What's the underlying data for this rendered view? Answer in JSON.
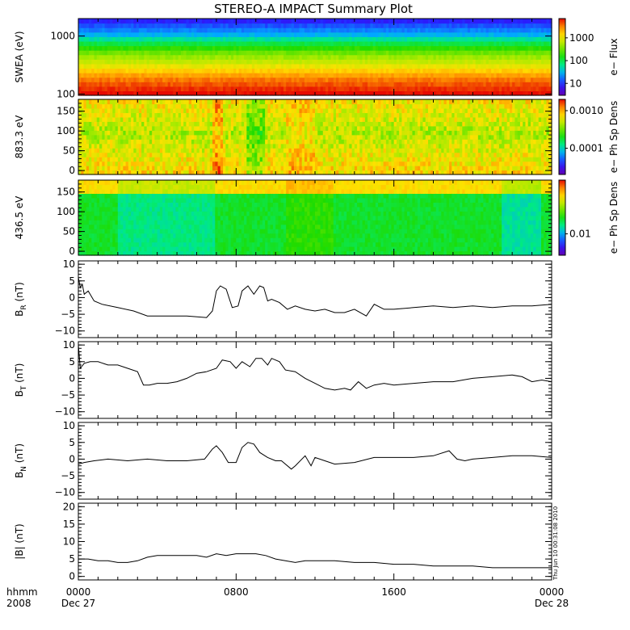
{
  "title": "STEREO-A IMPACT Summary Plot",
  "time_axis": {
    "range_hours": [
      0,
      24
    ],
    "ticks": [
      {
        "hour": 0,
        "label": "0000"
      },
      {
        "hour": 8,
        "label": "0800"
      },
      {
        "hour": 16,
        "label": "1600"
      },
      {
        "hour": 24,
        "label": "0000"
      }
    ],
    "date_labels": [
      {
        "hour": 0,
        "label": "Dec 27"
      },
      {
        "hour": 24,
        "label": "Dec 28"
      }
    ],
    "left_labels": [
      "hhmm",
      "2008"
    ]
  },
  "timestamp": "Thu Jun 10 00:31:08 2010",
  "chart_data": [
    {
      "type": "heatmap",
      "name": "swea",
      "ylabel": "SWEA (eV)",
      "ylim": [
        95,
        2000
      ],
      "yscale": "log",
      "yticks": [
        {
          "value": 100,
          "label": "100"
        },
        {
          "value": 1000,
          "label": "1000"
        }
      ],
      "colorbar": {
        "label": "e− Flux",
        "scale": "log",
        "range": [
          3,
          7000
        ],
        "ticks": [
          {
            "value": 10,
            "label": "10"
          },
          {
            "value": 100,
            "label": "100"
          },
          {
            "value": 1000,
            "label": "1000"
          }
        ]
      },
      "y_profile": [
        [
          95,
          0.0
        ],
        [
          180,
          0.12
        ],
        [
          300,
          0.3
        ],
        [
          500,
          0.45
        ],
        [
          700,
          0.6
        ],
        [
          1000,
          0.78
        ],
        [
          1500,
          0.9
        ],
        [
          2000,
          1.0
        ]
      ]
    },
    {
      "type": "heatmap",
      "name": "pad883",
      "ylabel": "883.3 eV",
      "ylim": [
        -10,
        180
      ],
      "yticks": [
        {
          "value": 0,
          "label": "0"
        },
        {
          "value": 50,
          "label": "50"
        },
        {
          "value": 100,
          "label": "100"
        },
        {
          "value": 150,
          "label": "150"
        }
      ],
      "colorbar": {
        "label": "e− Ph Sp Dens",
        "scale": "log",
        "range": [
          2e-05,
          0.002
        ],
        "ticks": [
          {
            "value": 0.0001,
            "label": "0.0001"
          },
          {
            "value": 0.001,
            "label": "0.0010"
          }
        ]
      }
    },
    {
      "type": "heatmap",
      "name": "pad436",
      "ylabel": "436.5 eV",
      "ylim": [
        -10,
        180
      ],
      "yticks": [
        {
          "value": 0,
          "label": "0"
        },
        {
          "value": 50,
          "label": "50"
        },
        {
          "value": 100,
          "label": "100"
        },
        {
          "value": 150,
          "label": "150"
        }
      ],
      "colorbar": {
        "label": "e− Ph Sp Dens",
        "scale": "log",
        "range": [
          0.004,
          0.1
        ],
        "ticks": [
          {
            "value": 0.01,
            "label": "0.01"
          }
        ]
      }
    },
    {
      "type": "line",
      "name": "br",
      "ylabel_main": "B",
      "ylabel_sub": "R",
      "ylabel_unit": " (nT)",
      "ylim": [
        -12,
        11
      ],
      "yticks": [
        {
          "value": -10,
          "label": "−10"
        },
        {
          "value": -5,
          "label": "−5"
        },
        {
          "value": 0,
          "label": "0"
        },
        {
          "value": 5,
          "label": "5"
        },
        {
          "value": 10,
          "label": "10"
        }
      ],
      "x": [
        0,
        0.1,
        0.2,
        0.3,
        0.5,
        0.8,
        1.2,
        2.0,
        2.8,
        3.5,
        4.5,
        5.5,
        6.5,
        6.8,
        7.0,
        7.2,
        7.5,
        7.8,
        8.1,
        8.3,
        8.6,
        8.9,
        9.2,
        9.4,
        9.6,
        9.8,
        10.2,
        10.6,
        11.0,
        11.5,
        12.0,
        12.5,
        13.0,
        13.5,
        14.0,
        14.6,
        15.0,
        15.5,
        16.0,
        17.0,
        18.0,
        19.0,
        20.0,
        21.0,
        22.0,
        23.0,
        24.0
      ],
      "y": [
        6,
        3,
        4,
        1,
        2,
        -1,
        -2,
        -3,
        -4,
        -5.5,
        -5.5,
        -5.5,
        -6,
        -4,
        2,
        3.5,
        2.5,
        -3,
        -2.5,
        2,
        3.5,
        1,
        3.5,
        3,
        -1,
        -0.5,
        -1.5,
        -3.5,
        -2.5,
        -3.5,
        -4,
        -3.5,
        -4.5,
        -4.5,
        -3.5,
        -5.5,
        -2,
        -3.5,
        -3.5,
        -3,
        -2.5,
        -3,
        -2.5,
        -3,
        -2.5,
        -2.5,
        -2
      ]
    },
    {
      "type": "line",
      "name": "bt",
      "ylabel_main": "B",
      "ylabel_sub": "T",
      "ylabel_unit": " (nT)",
      "ylim": [
        -12,
        11
      ],
      "yticks": [
        {
          "value": -10,
          "label": "−10"
        },
        {
          "value": -5,
          "label": "−5"
        },
        {
          "value": 0,
          "label": "0"
        },
        {
          "value": 5,
          "label": "5"
        },
        {
          "value": 10,
          "label": "10"
        }
      ],
      "x": [
        0,
        0.1,
        0.3,
        0.6,
        1.0,
        1.5,
        2.0,
        2.5,
        3.0,
        3.3,
        3.6,
        4.0,
        4.5,
        5.0,
        5.5,
        6.0,
        6.5,
        7.0,
        7.3,
        7.7,
        8.0,
        8.3,
        8.7,
        9.0,
        9.3,
        9.6,
        9.8,
        10.2,
        10.5,
        11.0,
        11.5,
        12.0,
        12.5,
        13.0,
        13.5,
        13.8,
        14.2,
        14.6,
        15.0,
        15.5,
        16.0,
        17.0,
        18.0,
        19.0,
        20.0,
        21.0,
        22.0,
        22.5,
        23.0,
        23.5,
        24.0
      ],
      "y": [
        10,
        3,
        4.5,
        5,
        5,
        4,
        4,
        3,
        2,
        -2,
        -2,
        -1.5,
        -1.5,
        -1,
        0,
        1.5,
        2,
        3,
        5.5,
        5,
        3,
        5,
        3.5,
        6,
        6,
        4,
        6,
        5,
        2.5,
        2,
        0,
        -1.5,
        -3,
        -3.5,
        -3,
        -3.5,
        -1,
        -3,
        -2,
        -1.5,
        -2,
        -1.5,
        -1,
        -1,
        0,
        0.5,
        1,
        0.5,
        -1,
        -0.5,
        -1
      ]
    },
    {
      "type": "line",
      "name": "bn",
      "ylabel_main": "B",
      "ylabel_sub": "N",
      "ylabel_unit": " (nT)",
      "ylim": [
        -12,
        11
      ],
      "yticks": [
        {
          "value": -10,
          "label": "−10"
        },
        {
          "value": -5,
          "label": "−5"
        },
        {
          "value": 0,
          "label": "0"
        },
        {
          "value": 5,
          "label": "5"
        },
        {
          "value": 10,
          "label": "10"
        }
      ],
      "x": [
        0,
        0.3,
        0.8,
        1.5,
        2.5,
        3.5,
        4.5,
        5.5,
        6.4,
        6.8,
        7.0,
        7.3,
        7.6,
        8.0,
        8.3,
        8.6,
        8.9,
        9.2,
        9.6,
        10.0,
        10.3,
        10.8,
        11.0,
        11.5,
        11.8,
        12.0,
        12.5,
        13.0,
        14.0,
        15.0,
        16.0,
        17.0,
        18.0,
        18.8,
        19.2,
        19.6,
        20.0,
        21.0,
        22.0,
        23.0,
        24.0
      ],
      "y": [
        -1.5,
        -1,
        -0.5,
        0,
        -0.5,
        0,
        -0.5,
        -0.5,
        0,
        3,
        4,
        2,
        -1,
        -1,
        3.5,
        5,
        4.5,
        2,
        0.5,
        -0.5,
        -0.5,
        -3,
        -2,
        1,
        -2,
        0.5,
        -0.5,
        -1.5,
        -1,
        0.5,
        0.5,
        0.5,
        1,
        2.5,
        0,
        -0.5,
        0,
        0.5,
        1,
        1,
        0.5
      ]
    },
    {
      "type": "line",
      "name": "bmag",
      "ylabel_main": "|B|",
      "ylabel_sub": "",
      "ylabel_unit": " (nT)",
      "ylim": [
        -1,
        21
      ],
      "yticks": [
        {
          "value": 0,
          "label": "0"
        },
        {
          "value": 5,
          "label": "5"
        },
        {
          "value": 10,
          "label": "10"
        },
        {
          "value": 15,
          "label": "15"
        },
        {
          "value": 20,
          "label": "20"
        }
      ],
      "x": [
        0,
        0.5,
        1.0,
        1.5,
        2.0,
        2.5,
        3.0,
        3.5,
        4.0,
        5.0,
        6.0,
        6.5,
        7.0,
        7.5,
        8.0,
        8.5,
        9.0,
        9.5,
        10.0,
        10.5,
        11.0,
        11.5,
        12.0,
        13.0,
        14.0,
        15.0,
        16.0,
        17.0,
        18.0,
        19.0,
        20.0,
        21.0,
        22.0,
        23.0,
        24.0
      ],
      "y": [
        5,
        5,
        4.5,
        4.5,
        4,
        4,
        4.5,
        5.5,
        6,
        6,
        6,
        5.5,
        6.5,
        6,
        6.5,
        6.5,
        6.5,
        6,
        5,
        4.5,
        4,
        4.5,
        4.5,
        4.5,
        4,
        4,
        3.5,
        3.5,
        3,
        3,
        3,
        2.5,
        2.5,
        2.5,
        2.5
      ]
    }
  ]
}
